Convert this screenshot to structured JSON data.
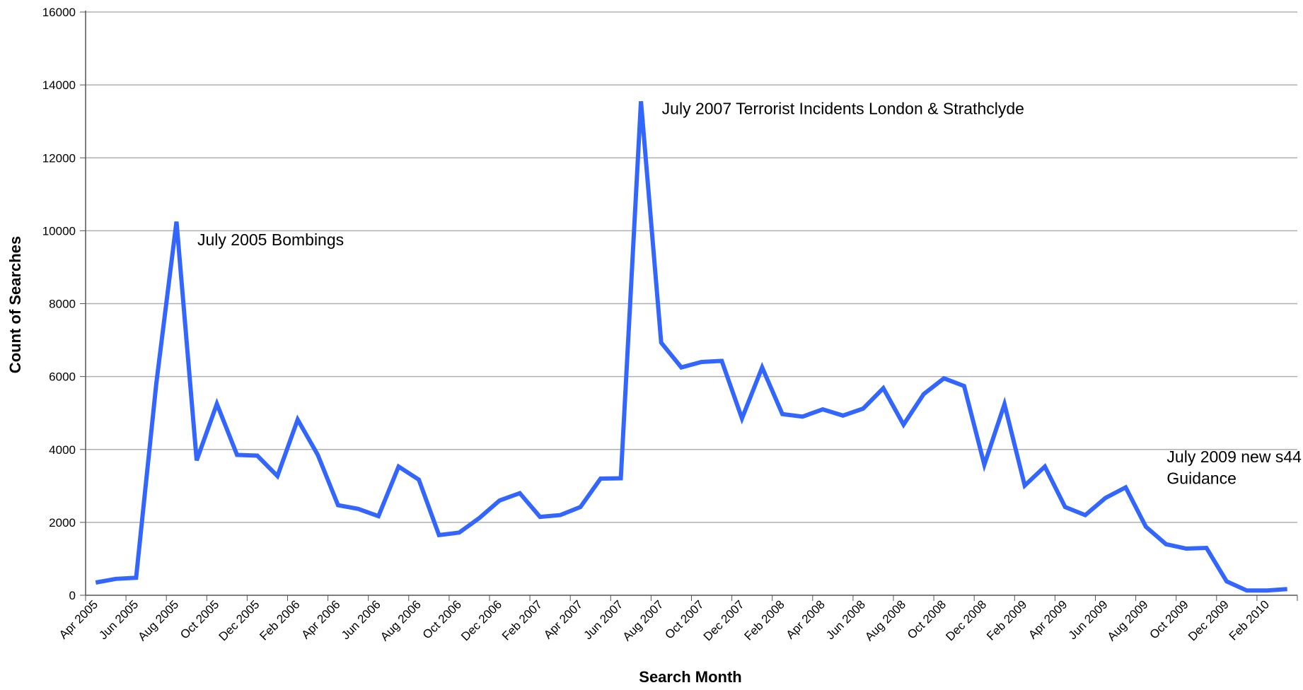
{
  "chart_data": {
    "type": "line",
    "title": "",
    "xlabel": "Search Month",
    "ylabel": "Count of Searches",
    "ylim": [
      0,
      16000
    ],
    "yticks": [
      0,
      2000,
      4000,
      6000,
      8000,
      10000,
      12000,
      14000,
      16000
    ],
    "grid": true,
    "legend": "none",
    "line_color": "#3366ff",
    "x": [
      "Apr 2005",
      "May 2005",
      "Jun 2005",
      "Jul 2005",
      "Aug 2005",
      "Sep 2005",
      "Oct 2005",
      "Nov 2005",
      "Dec 2005",
      "Jan 2006",
      "Feb 2006",
      "Mar 2006",
      "Apr 2006",
      "May 2006",
      "Jun 2006",
      "Jul 2006",
      "Aug 2006",
      "Sep 2006",
      "Oct 2006",
      "Nov 2006",
      "Dec 2006",
      "Jan 2007",
      "Feb 2007",
      "Mar 2007",
      "Apr 2007",
      "May 2007",
      "Jun 2007",
      "Jul 2007",
      "Aug 2007",
      "Sep 2007",
      "Oct 2007",
      "Nov 2007",
      "Dec 2007",
      "Jan 2008",
      "Feb 2008",
      "Mar 2008",
      "Apr 2008",
      "May 2008",
      "Jun 2008",
      "Jul 2008",
      "Aug 2008",
      "Sep 2008",
      "Oct 2008",
      "Nov 2008",
      "Dec 2008",
      "Jan 2009",
      "Feb 2009",
      "Mar 2009",
      "Apr 2009",
      "May 2009",
      "Jun 2009",
      "Jul 2009",
      "Aug 2009",
      "Sep 2009",
      "Oct 2009",
      "Nov 2009",
      "Dec 2009",
      "Jan 2010",
      "Feb 2010",
      "Mar 2010"
    ],
    "x_tick_labels": [
      "Apr 2005",
      "Jun 2005",
      "Aug 2005",
      "Oct 2005",
      "Dec 2005",
      "Feb 2006",
      "Apr 2006",
      "Jun 2006",
      "Aug 2006",
      "Oct 2006",
      "Dec 2006",
      "Feb 2007",
      "Apr 2007",
      "Jun 2007",
      "Aug 2007",
      "Oct 2007",
      "Dec 2007",
      "Feb 2008",
      "Apr 2008",
      "Jun 2008",
      "Aug 2008",
      "Oct 2008",
      "Dec 2008",
      "Feb 2009",
      "Apr 2009",
      "Jun 2009",
      "Aug 2009",
      "Oct 2009",
      "Dec 2009",
      "Feb 2010"
    ],
    "series": [
      {
        "values": [
          350,
          450,
          480,
          5800,
          10250,
          3700,
          5250,
          3850,
          3830,
          3270,
          4820,
          3850,
          2470,
          2370,
          2170,
          3530,
          3170,
          1650,
          1720,
          2120,
          2600,
          2800,
          2150,
          2200,
          2420,
          3200,
          3210,
          13550,
          6930,
          6250,
          6400,
          6430,
          4850,
          6250,
          4970,
          4900,
          5100,
          4930,
          5120,
          5680,
          4680,
          5520,
          5950,
          5740,
          3580,
          5240,
          3010,
          3530,
          2420,
          2200,
          2670,
          2960,
          1880,
          1400,
          1280,
          1300,
          380,
          130,
          130,
          170
        ]
      }
    ],
    "annotations": [
      {
        "text": "July 2005 Bombings",
        "x": "Sep 2005",
        "y": 9600
      },
      {
        "text": "July 2007 Terrorist Incidents London & Strathclyde",
        "x": "Aug 2007",
        "y": 13200
      },
      {
        "text": "July 2009 new s44",
        "x": "Sep 2009",
        "y": 3650
      },
      {
        "text": "Guidance",
        "x": "Sep 2009",
        "y": 3050
      }
    ]
  }
}
